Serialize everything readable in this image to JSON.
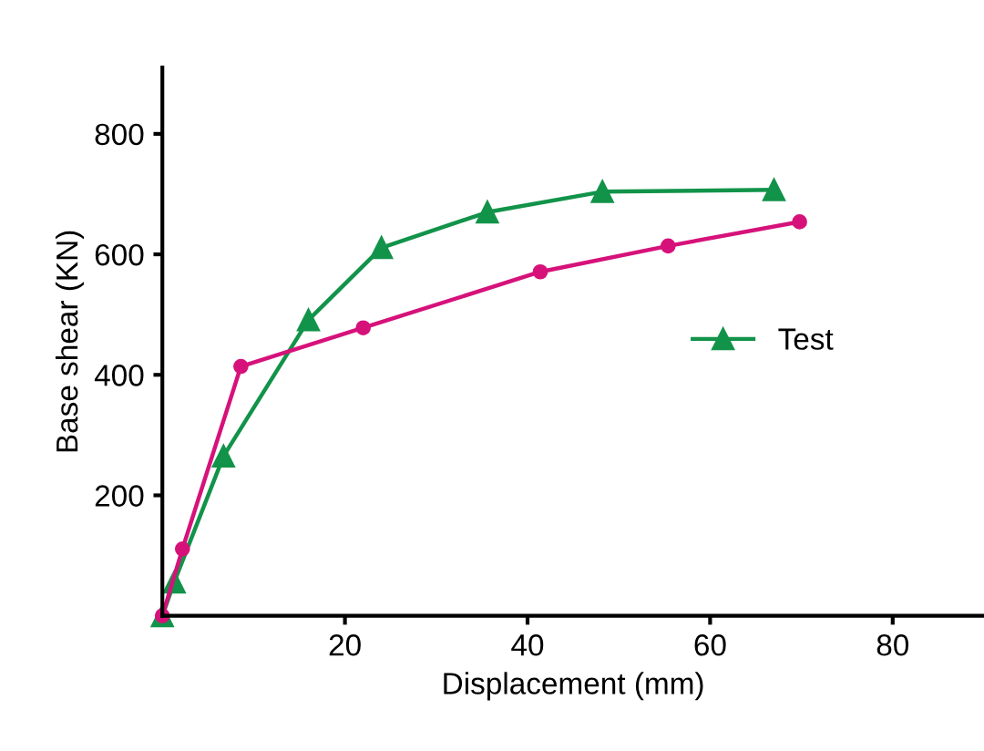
{
  "chart_data": {
    "type": "line",
    "xlabel": "Displacement (mm)",
    "ylabel": "Base shear (KN)",
    "xlim": [
      0,
      90
    ],
    "ylim": [
      0,
      910
    ],
    "xticks": [
      20,
      40,
      60,
      80
    ],
    "yticks": [
      200,
      400,
      600,
      800
    ],
    "grid": false,
    "legend": "right",
    "line_style": "solid",
    "series": [
      {
        "name": "Test",
        "color": "#12934a",
        "marker": "triangle",
        "x": [
          0,
          1.3,
          6.7,
          16,
          24,
          35.6,
          48.2,
          67
        ],
        "values": [
          0,
          56,
          265,
          491,
          611,
          670,
          704,
          707
        ]
      },
      {
        "color": "#d6127a",
        "marker": "circle",
        "x": [
          0,
          2.2,
          8.6,
          22,
          41.4,
          55.4,
          69.8
        ],
        "values": [
          0,
          111,
          414,
          478,
          571,
          614,
          654
        ]
      }
    ]
  }
}
